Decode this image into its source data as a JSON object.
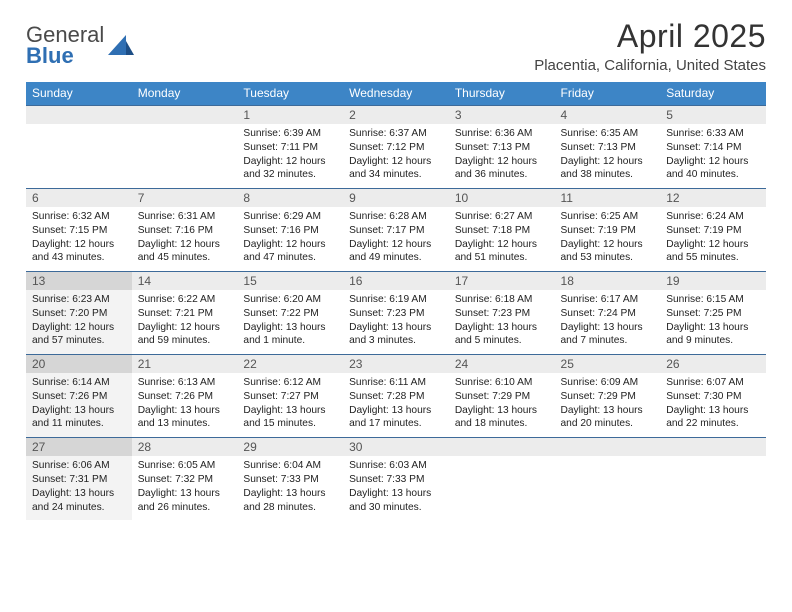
{
  "brand": {
    "text1": "General",
    "text2": "Blue"
  },
  "title": "April 2025",
  "location": "Placentia, California, United States",
  "colors": {
    "header_bg": "#3d85c6",
    "header_text": "#ffffff",
    "row_divider": "#3d6a99",
    "daynum_bg": "#ececec",
    "daynum_bg_shaded": "#d6d6d6",
    "info_bg_shaded": "#f3f3f3",
    "text": "#222222"
  },
  "weekdays": [
    "Sunday",
    "Monday",
    "Tuesday",
    "Wednesday",
    "Thursday",
    "Friday",
    "Saturday"
  ],
  "weeks": [
    [
      {
        "n": "",
        "sunrise": "",
        "sunset": "",
        "daylight": "",
        "empty": true
      },
      {
        "n": "",
        "sunrise": "",
        "sunset": "",
        "daylight": "",
        "empty": true
      },
      {
        "n": "1",
        "sunrise": "Sunrise: 6:39 AM",
        "sunset": "Sunset: 7:11 PM",
        "daylight": "Daylight: 12 hours and 32 minutes."
      },
      {
        "n": "2",
        "sunrise": "Sunrise: 6:37 AM",
        "sunset": "Sunset: 7:12 PM",
        "daylight": "Daylight: 12 hours and 34 minutes."
      },
      {
        "n": "3",
        "sunrise": "Sunrise: 6:36 AM",
        "sunset": "Sunset: 7:13 PM",
        "daylight": "Daylight: 12 hours and 36 minutes."
      },
      {
        "n": "4",
        "sunrise": "Sunrise: 6:35 AM",
        "sunset": "Sunset: 7:13 PM",
        "daylight": "Daylight: 12 hours and 38 minutes."
      },
      {
        "n": "5",
        "sunrise": "Sunrise: 6:33 AM",
        "sunset": "Sunset: 7:14 PM",
        "daylight": "Daylight: 12 hours and 40 minutes."
      }
    ],
    [
      {
        "n": "6",
        "sunrise": "Sunrise: 6:32 AM",
        "sunset": "Sunset: 7:15 PM",
        "daylight": "Daylight: 12 hours and 43 minutes."
      },
      {
        "n": "7",
        "sunrise": "Sunrise: 6:31 AM",
        "sunset": "Sunset: 7:16 PM",
        "daylight": "Daylight: 12 hours and 45 minutes."
      },
      {
        "n": "8",
        "sunrise": "Sunrise: 6:29 AM",
        "sunset": "Sunset: 7:16 PM",
        "daylight": "Daylight: 12 hours and 47 minutes."
      },
      {
        "n": "9",
        "sunrise": "Sunrise: 6:28 AM",
        "sunset": "Sunset: 7:17 PM",
        "daylight": "Daylight: 12 hours and 49 minutes."
      },
      {
        "n": "10",
        "sunrise": "Sunrise: 6:27 AM",
        "sunset": "Sunset: 7:18 PM",
        "daylight": "Daylight: 12 hours and 51 minutes."
      },
      {
        "n": "11",
        "sunrise": "Sunrise: 6:25 AM",
        "sunset": "Sunset: 7:19 PM",
        "daylight": "Daylight: 12 hours and 53 minutes."
      },
      {
        "n": "12",
        "sunrise": "Sunrise: 6:24 AM",
        "sunset": "Sunset: 7:19 PM",
        "daylight": "Daylight: 12 hours and 55 minutes."
      }
    ],
    [
      {
        "n": "13",
        "sunrise": "Sunrise: 6:23 AM",
        "sunset": "Sunset: 7:20 PM",
        "daylight": "Daylight: 12 hours and 57 minutes.",
        "shaded": true
      },
      {
        "n": "14",
        "sunrise": "Sunrise: 6:22 AM",
        "sunset": "Sunset: 7:21 PM",
        "daylight": "Daylight: 12 hours and 59 minutes."
      },
      {
        "n": "15",
        "sunrise": "Sunrise: 6:20 AM",
        "sunset": "Sunset: 7:22 PM",
        "daylight": "Daylight: 13 hours and 1 minute."
      },
      {
        "n": "16",
        "sunrise": "Sunrise: 6:19 AM",
        "sunset": "Sunset: 7:23 PM",
        "daylight": "Daylight: 13 hours and 3 minutes."
      },
      {
        "n": "17",
        "sunrise": "Sunrise: 6:18 AM",
        "sunset": "Sunset: 7:23 PM",
        "daylight": "Daylight: 13 hours and 5 minutes."
      },
      {
        "n": "18",
        "sunrise": "Sunrise: 6:17 AM",
        "sunset": "Sunset: 7:24 PM",
        "daylight": "Daylight: 13 hours and 7 minutes."
      },
      {
        "n": "19",
        "sunrise": "Sunrise: 6:15 AM",
        "sunset": "Sunset: 7:25 PM",
        "daylight": "Daylight: 13 hours and 9 minutes."
      }
    ],
    [
      {
        "n": "20",
        "sunrise": "Sunrise: 6:14 AM",
        "sunset": "Sunset: 7:26 PM",
        "daylight": "Daylight: 13 hours and 11 minutes.",
        "shaded": true
      },
      {
        "n": "21",
        "sunrise": "Sunrise: 6:13 AM",
        "sunset": "Sunset: 7:26 PM",
        "daylight": "Daylight: 13 hours and 13 minutes."
      },
      {
        "n": "22",
        "sunrise": "Sunrise: 6:12 AM",
        "sunset": "Sunset: 7:27 PM",
        "daylight": "Daylight: 13 hours and 15 minutes."
      },
      {
        "n": "23",
        "sunrise": "Sunrise: 6:11 AM",
        "sunset": "Sunset: 7:28 PM",
        "daylight": "Daylight: 13 hours and 17 minutes."
      },
      {
        "n": "24",
        "sunrise": "Sunrise: 6:10 AM",
        "sunset": "Sunset: 7:29 PM",
        "daylight": "Daylight: 13 hours and 18 minutes."
      },
      {
        "n": "25",
        "sunrise": "Sunrise: 6:09 AM",
        "sunset": "Sunset: 7:29 PM",
        "daylight": "Daylight: 13 hours and 20 minutes."
      },
      {
        "n": "26",
        "sunrise": "Sunrise: 6:07 AM",
        "sunset": "Sunset: 7:30 PM",
        "daylight": "Daylight: 13 hours and 22 minutes."
      }
    ],
    [
      {
        "n": "27",
        "sunrise": "Sunrise: 6:06 AM",
        "sunset": "Sunset: 7:31 PM",
        "daylight": "Daylight: 13 hours and 24 minutes.",
        "shaded": true
      },
      {
        "n": "28",
        "sunrise": "Sunrise: 6:05 AM",
        "sunset": "Sunset: 7:32 PM",
        "daylight": "Daylight: 13 hours and 26 minutes."
      },
      {
        "n": "29",
        "sunrise": "Sunrise: 6:04 AM",
        "sunset": "Sunset: 7:33 PM",
        "daylight": "Daylight: 13 hours and 28 minutes."
      },
      {
        "n": "30",
        "sunrise": "Sunrise: 6:03 AM",
        "sunset": "Sunset: 7:33 PM",
        "daylight": "Daylight: 13 hours and 30 minutes."
      },
      {
        "n": "",
        "sunrise": "",
        "sunset": "",
        "daylight": "",
        "empty": true
      },
      {
        "n": "",
        "sunrise": "",
        "sunset": "",
        "daylight": "",
        "empty": true
      },
      {
        "n": "",
        "sunrise": "",
        "sunset": "",
        "daylight": "",
        "empty": true
      }
    ]
  ]
}
